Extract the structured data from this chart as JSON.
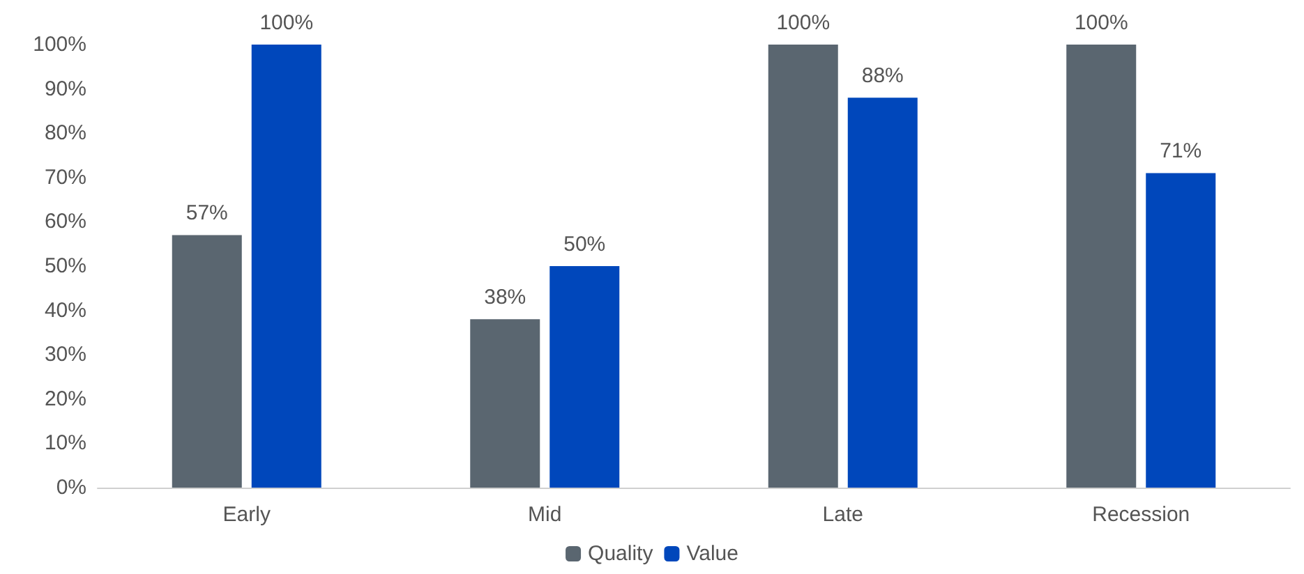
{
  "chart_data": {
    "type": "bar",
    "categories": [
      "Early",
      "Mid",
      "Late",
      "Recession"
    ],
    "series": [
      {
        "name": "Quality",
        "color": "#5a6670",
        "values": [
          57,
          38,
          100,
          100
        ],
        "value_labels": [
          "57%",
          "38%",
          "100%",
          "100%"
        ]
      },
      {
        "name": "Value",
        "color": "#0047bb",
        "values": [
          100,
          50,
          88,
          71
        ],
        "value_labels": [
          "100%",
          "50%",
          "88%",
          "71%"
        ]
      }
    ],
    "ylim": [
      0,
      100
    ],
    "yticks": [
      {
        "value": 0,
        "label": "0%"
      },
      {
        "value": 10,
        "label": "10%"
      },
      {
        "value": 20,
        "label": "20%"
      },
      {
        "value": 30,
        "label": "30%"
      },
      {
        "value": 40,
        "label": "40%"
      },
      {
        "value": 50,
        "label": "50%"
      },
      {
        "value": 60,
        "label": "60%"
      },
      {
        "value": 70,
        "label": "70%"
      },
      {
        "value": 80,
        "label": "80%"
      },
      {
        "value": 90,
        "label": "90%"
      },
      {
        "value": 100,
        "label": "100%"
      }
    ],
    "grid": false,
    "legend": "bottom"
  }
}
